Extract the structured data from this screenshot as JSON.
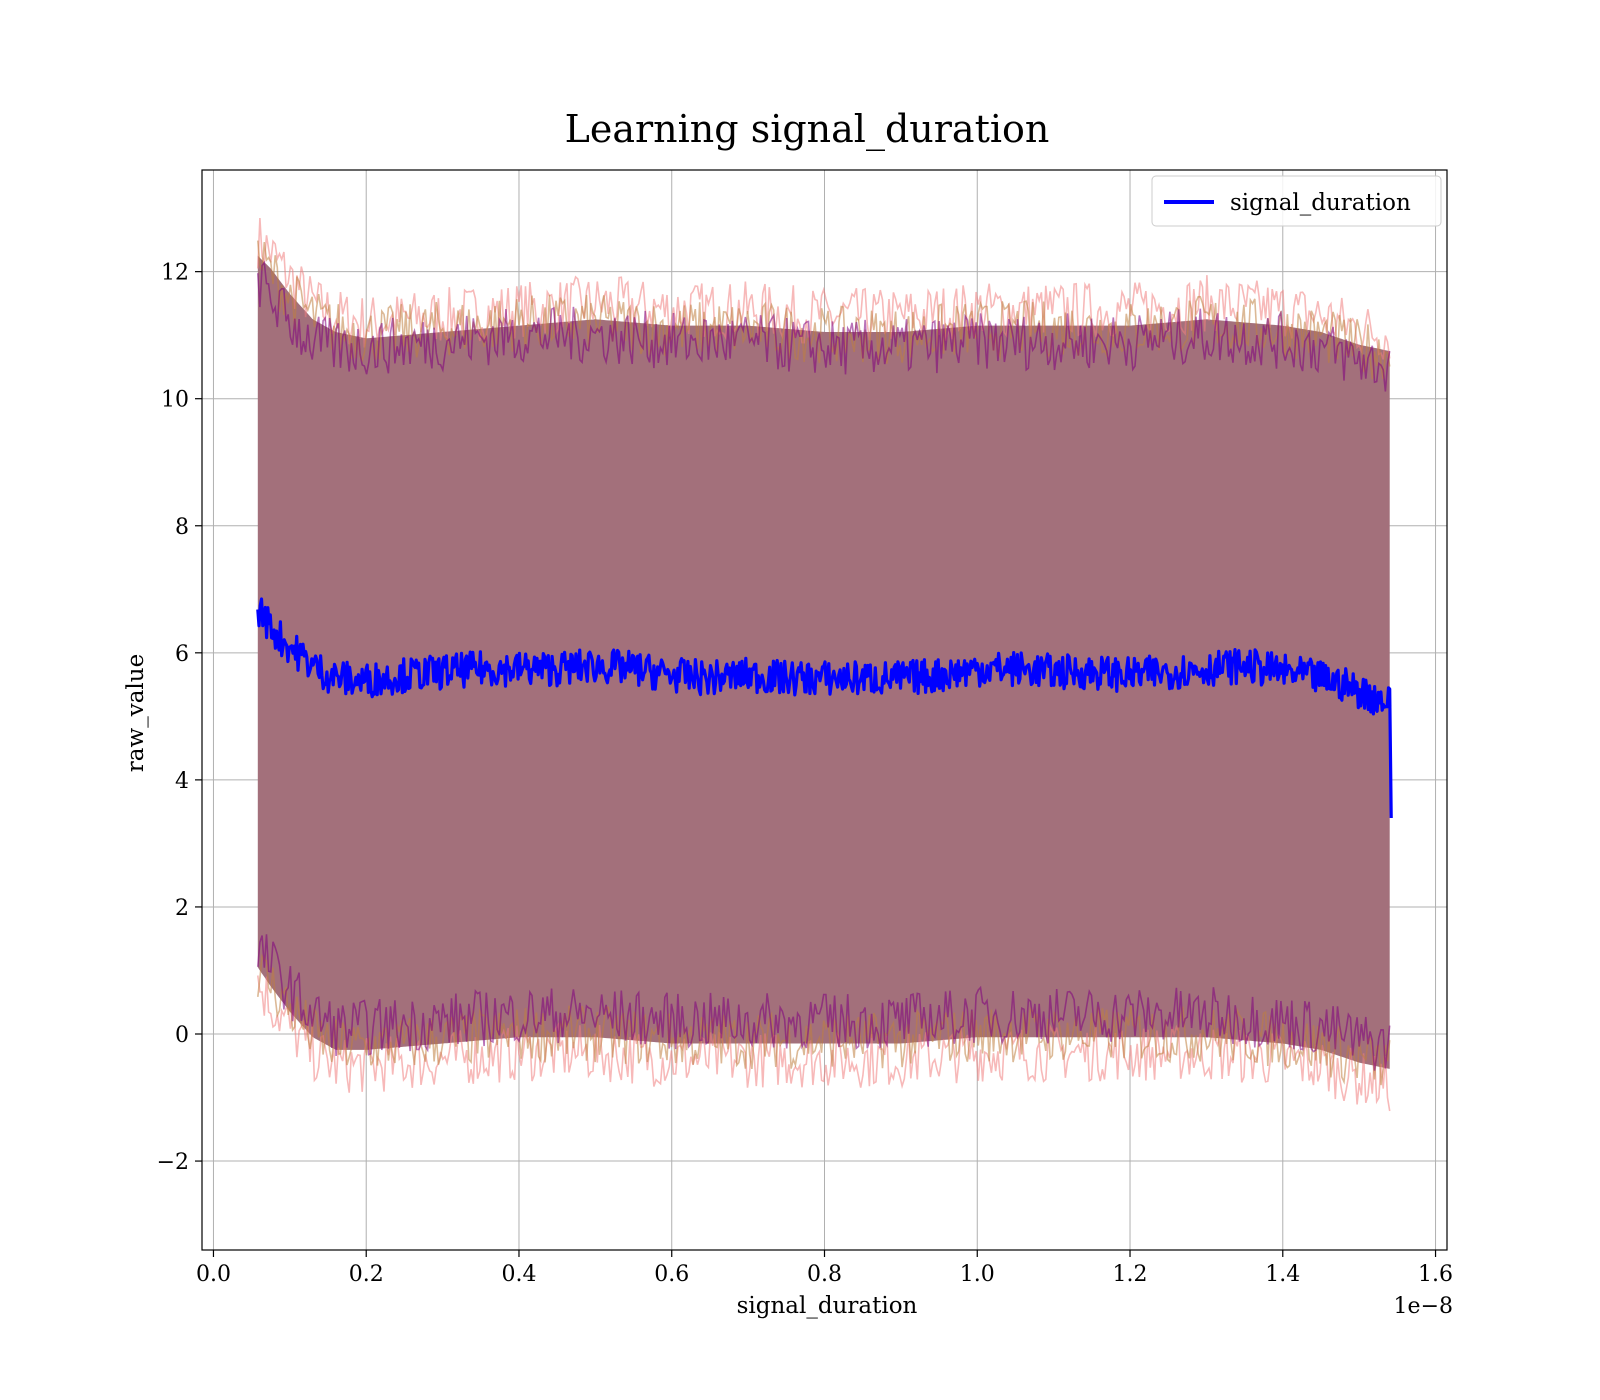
{
  "chart_data": {
    "type": "line",
    "title": "Learning signal_duration",
    "xlabel": "signal_duration",
    "ylabel": "raw_value",
    "x_offset_label": "1e−8",
    "xlim": [
      -0.015,
      1.615
    ],
    "ylim": [
      -3.4,
      13.6
    ],
    "x_ticks": [
      0.0,
      0.2,
      0.4,
      0.6,
      0.8,
      1.0,
      1.2,
      1.4,
      1.6
    ],
    "x_tick_labels": [
      "0.0",
      "0.2",
      "0.4",
      "0.6",
      "0.8",
      "1.0",
      "1.2",
      "1.4",
      "1.6"
    ],
    "y_ticks": [
      -2,
      0,
      2,
      4,
      6,
      8,
      10,
      12
    ],
    "y_tick_labels": [
      "−2",
      "0",
      "2",
      "4",
      "6",
      "8",
      "10",
      "12"
    ],
    "grid": true,
    "legend_position": "top-right",
    "series": [
      {
        "name": "signal_duration",
        "color": "#0000ff",
        "x": [
          0.058,
          0.065,
          0.075,
          0.09,
          0.11,
          0.13,
          0.15,
          0.17,
          0.19,
          0.22,
          0.25,
          0.3,
          0.35,
          0.4,
          0.45,
          0.5,
          0.55,
          0.6,
          0.65,
          0.7,
          0.75,
          0.8,
          0.85,
          0.9,
          0.95,
          1.0,
          1.05,
          1.1,
          1.15,
          1.2,
          1.25,
          1.3,
          1.35,
          1.4,
          1.45,
          1.48,
          1.5,
          1.52,
          1.535,
          1.54,
          1.542
        ],
        "y": [
          6.7,
          6.6,
          6.4,
          6.2,
          6.0,
          5.8,
          5.65,
          5.6,
          5.55,
          5.6,
          5.65,
          5.7,
          5.75,
          5.75,
          5.75,
          5.8,
          5.75,
          5.65,
          5.6,
          5.65,
          5.6,
          5.6,
          5.6,
          5.6,
          5.65,
          5.75,
          5.75,
          5.7,
          5.7,
          5.65,
          5.7,
          5.75,
          5.8,
          5.7,
          5.6,
          5.5,
          5.4,
          5.3,
          5.25,
          5.2,
          3.4
        ]
      }
    ],
    "bands": [
      {
        "color": "#f08080",
        "x": [
          0.058,
          0.075,
          0.1,
          0.13,
          0.16,
          0.2,
          0.3,
          0.4,
          0.5,
          0.6,
          0.7,
          0.8,
          0.9,
          1.0,
          1.1,
          1.2,
          1.3,
          1.4,
          1.45,
          1.5,
          1.54
        ],
        "upper": [
          12.5,
          12.3,
          11.9,
          11.5,
          11.3,
          11.2,
          11.3,
          11.4,
          11.5,
          11.4,
          11.4,
          11.3,
          11.3,
          11.4,
          11.4,
          11.4,
          11.5,
          11.4,
          11.3,
          11.1,
          11.0
        ],
        "lower": [
          0.8,
          0.5,
          0.1,
          -0.3,
          -0.5,
          -0.5,
          -0.4,
          -0.3,
          -0.3,
          -0.4,
          -0.4,
          -0.4,
          -0.4,
          -0.3,
          -0.3,
          -0.3,
          -0.3,
          -0.4,
          -0.5,
          -0.7,
          -0.8
        ]
      },
      {
        "color": "#c08040",
        "x": [
          0.058,
          0.075,
          0.1,
          0.13,
          0.16,
          0.2,
          0.3,
          0.4,
          0.5,
          0.6,
          0.7,
          0.8,
          0.9,
          1.0,
          1.1,
          1.2,
          1.3,
          1.4,
          1.45,
          1.5,
          1.54
        ],
        "upper": [
          12.2,
          12.0,
          11.6,
          11.3,
          11.1,
          11.0,
          11.1,
          11.2,
          11.2,
          11.1,
          11.1,
          11.0,
          11.0,
          11.1,
          11.1,
          11.1,
          11.2,
          11.1,
          11.0,
          10.8,
          10.7
        ],
        "lower": [
          1.0,
          0.8,
          0.4,
          0.0,
          -0.2,
          -0.2,
          -0.1,
          0.0,
          0.0,
          -0.1,
          -0.1,
          -0.1,
          -0.1,
          0.0,
          0.0,
          0.0,
          0.0,
          -0.1,
          -0.2,
          -0.4,
          -0.5
        ]
      },
      {
        "color": "#800080",
        "x": [
          0.058,
          0.075,
          0.1,
          0.13,
          0.16,
          0.2,
          0.3,
          0.4,
          0.5,
          0.6,
          0.7,
          0.8,
          0.9,
          1.0,
          1.1,
          1.2,
          1.3,
          1.4,
          1.45,
          1.5,
          1.54
        ],
        "upper": [
          11.9,
          11.6,
          11.2,
          10.9,
          10.8,
          10.8,
          10.9,
          11.0,
          11.0,
          10.9,
          10.9,
          10.8,
          10.8,
          10.9,
          10.9,
          10.9,
          11.0,
          10.9,
          10.8,
          10.6,
          10.5
        ],
        "lower": [
          1.3,
          1.1,
          0.7,
          0.3,
          0.1,
          0.1,
          0.2,
          0.3,
          0.3,
          0.2,
          0.2,
          0.2,
          0.2,
          0.3,
          0.3,
          0.3,
          0.3,
          0.2,
          0.1,
          -0.1,
          -0.2
        ]
      }
    ],
    "fill_color": "#a3707b",
    "legend": [
      {
        "label": "signal_duration",
        "color": "#0000ff"
      }
    ]
  }
}
